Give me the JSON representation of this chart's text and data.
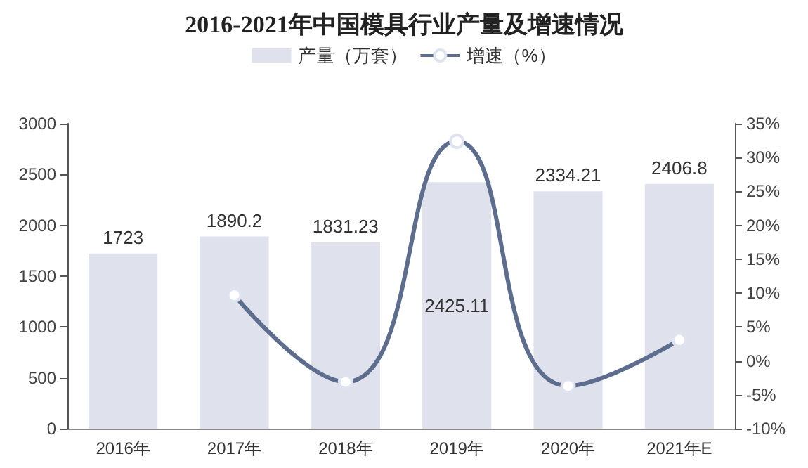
{
  "chart_data": {
    "type": "bar",
    "title": "2016-2021年中国模具行业产量及增速情况",
    "categories": [
      "2016年",
      "2017年",
      "2018年",
      "2019年",
      "2020年",
      "2021年E"
    ],
    "series": [
      {
        "name": "产量（万套）",
        "type": "bar",
        "color": "#dfe2ec",
        "values": [
          1723,
          1890.2,
          1831.23,
          2425.11,
          2334.21,
          2406.8
        ],
        "value_labels": [
          "1723",
          "1890.2",
          "1831.23",
          "2425.11",
          "2334.21",
          "2406.8"
        ]
      },
      {
        "name": "增速（%）",
        "type": "line",
        "axis": "y2",
        "color": "#5d6d8e",
        "marker": "circle",
        "values": [
          null,
          9.7,
          -3.1,
          32.4,
          -3.7,
          3.1
        ]
      }
    ],
    "ylim": [
      0,
      3000
    ],
    "yticks": [
      0,
      500,
      1000,
      1500,
      2000,
      2500,
      3000
    ],
    "y2lim": [
      -10,
      35
    ],
    "y2ticks": [
      {
        "value": -10,
        "label": "-10%"
      },
      {
        "value": -5,
        "label": "-5%"
      },
      {
        "value": 0,
        "label": "0%"
      },
      {
        "value": 5,
        "label": "5%"
      },
      {
        "value": 10,
        "label": "10%"
      },
      {
        "value": 15,
        "label": "15%"
      },
      {
        "value": 20,
        "label": "20%"
      },
      {
        "value": 25,
        "label": "25%"
      },
      {
        "value": 30,
        "label": "30%"
      },
      {
        "value": 35,
        "label": "35%"
      }
    ],
    "legend": "top",
    "grid": false
  }
}
